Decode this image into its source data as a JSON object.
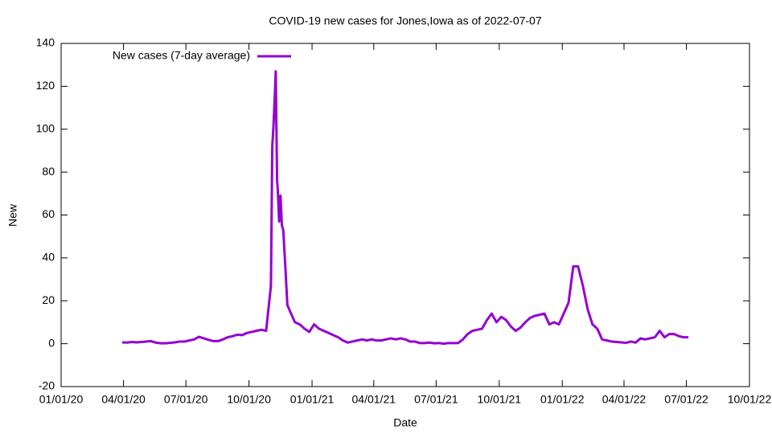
{
  "chart_data": {
    "type": "line",
    "title": "COVID-19 new cases for Jones,Iowa as of 2022-07-07",
    "xlabel": "Date",
    "ylabel": "New",
    "x": [
      "2020-03-30",
      "2020-04-06",
      "2020-04-13",
      "2020-04-20",
      "2020-04-27",
      "2020-05-04",
      "2020-05-11",
      "2020-05-18",
      "2020-05-25",
      "2020-06-01",
      "2020-06-08",
      "2020-06-15",
      "2020-06-22",
      "2020-06-29",
      "2020-07-06",
      "2020-07-13",
      "2020-07-20",
      "2020-07-27",
      "2020-08-03",
      "2020-08-10",
      "2020-08-17",
      "2020-08-24",
      "2020-08-31",
      "2020-09-07",
      "2020-09-14",
      "2020-09-21",
      "2020-09-28",
      "2020-10-05",
      "2020-10-12",
      "2020-10-19",
      "2020-10-26",
      "2020-10-29",
      "2020-11-02",
      "2020-11-04",
      "2020-11-06",
      "2020-11-08",
      "2020-11-09",
      "2020-11-11",
      "2020-11-12",
      "2020-11-14",
      "2020-11-16",
      "2020-11-18",
      "2020-11-20",
      "2020-11-23",
      "2020-11-26",
      "2020-11-30",
      "2020-12-07",
      "2020-12-14",
      "2020-12-21",
      "2020-12-28",
      "2021-01-04",
      "2021-01-11",
      "2021-01-18",
      "2021-01-25",
      "2021-02-01",
      "2021-02-08",
      "2021-02-15",
      "2021-02-22",
      "2021-03-01",
      "2021-03-08",
      "2021-03-15",
      "2021-03-22",
      "2021-03-29",
      "2021-04-05",
      "2021-04-12",
      "2021-04-19",
      "2021-04-26",
      "2021-05-03",
      "2021-05-10",
      "2021-05-17",
      "2021-05-24",
      "2021-05-31",
      "2021-06-07",
      "2021-06-14",
      "2021-06-21",
      "2021-06-28",
      "2021-07-05",
      "2021-07-12",
      "2021-07-19",
      "2021-07-26",
      "2021-08-02",
      "2021-08-09",
      "2021-08-16",
      "2021-08-23",
      "2021-08-30",
      "2021-09-06",
      "2021-09-13",
      "2021-09-20",
      "2021-09-27",
      "2021-10-04",
      "2021-10-11",
      "2021-10-18",
      "2021-10-25",
      "2021-11-01",
      "2021-11-08",
      "2021-11-15",
      "2021-11-22",
      "2021-11-29",
      "2021-12-06",
      "2021-12-13",
      "2021-12-20",
      "2021-12-27",
      "2022-01-03",
      "2022-01-10",
      "2022-01-17",
      "2022-01-24",
      "2022-01-31",
      "2022-02-07",
      "2022-02-14",
      "2022-02-21",
      "2022-02-28",
      "2022-03-07",
      "2022-03-14",
      "2022-03-21",
      "2022-03-28",
      "2022-04-04",
      "2022-04-11",
      "2022-04-18",
      "2022-04-25",
      "2022-05-02",
      "2022-05-09",
      "2022-05-16",
      "2022-05-23",
      "2022-05-30",
      "2022-06-06",
      "2022-06-13",
      "2022-06-20",
      "2022-06-27",
      "2022-07-04"
    ],
    "series": [
      {
        "name": "New cases (7-day average)",
        "color": "#9400d3",
        "values": [
          0.6,
          0.5,
          0.8,
          0.6,
          0.8,
          1,
          1.2,
          0.5,
          0.2,
          0.2,
          0.4,
          0.6,
          1,
          1,
          1.5,
          2,
          3.2,
          2.5,
          1.8,
          1.2,
          1.2,
          2,
          3,
          3.5,
          4.2,
          4,
          5,
          5.5,
          6,
          6.5,
          6,
          15,
          27,
          92,
          103,
          118,
          127,
          76,
          72,
          57,
          69,
          55,
          53,
          36,
          18,
          15,
          10,
          9,
          7,
          5.5,
          9,
          7,
          6,
          5,
          4,
          3,
          1.5,
          0.5,
          1,
          1.5,
          2,
          1.5,
          2,
          1.5,
          1.5,
          2,
          2.5,
          2,
          2.5,
          2,
          1,
          1,
          0.3,
          0.3,
          0.5,
          0.2,
          0.3,
          0,
          0.3,
          0.3,
          0.3,
          2,
          4.5,
          6,
          6.5,
          7,
          11,
          14,
          10,
          12.5,
          11,
          8,
          6,
          7.5,
          10,
          12,
          13,
          13.5,
          14,
          9,
          10,
          9,
          14,
          19,
          36,
          36,
          27,
          16,
          9,
          7,
          2,
          1.5,
          1,
          0.8,
          0.6,
          0.4,
          1,
          0.5,
          2.5,
          2,
          2.5,
          3,
          6,
          3,
          4.5,
          4.5,
          3.5,
          3,
          3
        ]
      }
    ],
    "xlim": [
      "2020-01-01",
      "2022-10-01"
    ],
    "xticks": [
      {
        "value": "2020-01-01",
        "label": "01/01/20"
      },
      {
        "value": "2020-04-01",
        "label": "04/01/20"
      },
      {
        "value": "2020-07-01",
        "label": "07/01/20"
      },
      {
        "value": "2020-10-01",
        "label": "10/01/20"
      },
      {
        "value": "2021-01-01",
        "label": "01/01/21"
      },
      {
        "value": "2021-04-01",
        "label": "04/01/21"
      },
      {
        "value": "2021-07-01",
        "label": "07/01/21"
      },
      {
        "value": "2021-10-01",
        "label": "10/01/21"
      },
      {
        "value": "2022-01-01",
        "label": "01/01/22"
      },
      {
        "value": "2022-04-01",
        "label": "04/01/22"
      },
      {
        "value": "2022-07-01",
        "label": "07/01/22"
      },
      {
        "value": "2022-10-01",
        "label": "10/01/22"
      }
    ],
    "ylim": [
      -20,
      140
    ],
    "yticks": [
      -20,
      0,
      20,
      40,
      60,
      80,
      100,
      120,
      140
    ],
    "legend": "top-left"
  }
}
